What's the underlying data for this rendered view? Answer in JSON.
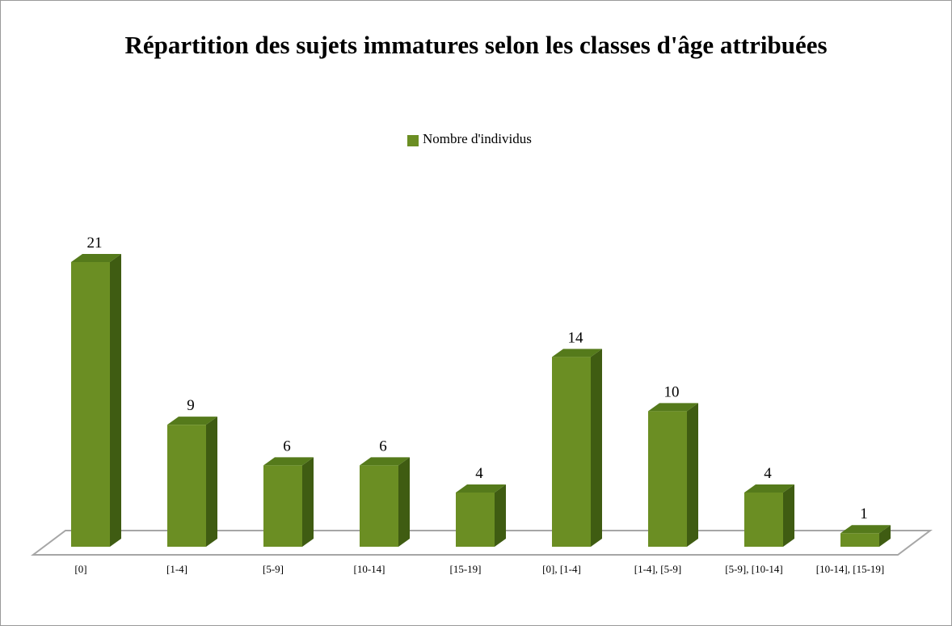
{
  "chart_data": {
    "type": "bar3d",
    "title": "Répartition des sujets immatures selon les classes d'âge attribuées",
    "legend": "Nombre d'individus",
    "categories": [
      "[0]",
      "[1-4]",
      "[5-9]",
      "[10-14]",
      "[15-19]",
      "[0], [1-4]",
      "[1-4], [5-9]",
      "[5-9], [10-14]",
      "[10-14], [15-19]"
    ],
    "series": [
      {
        "name": "Nombre d'individus",
        "color": "#6b8e23",
        "values": [
          21,
          9,
          6,
          6,
          4,
          14,
          10,
          4,
          1
        ]
      }
    ]
  }
}
